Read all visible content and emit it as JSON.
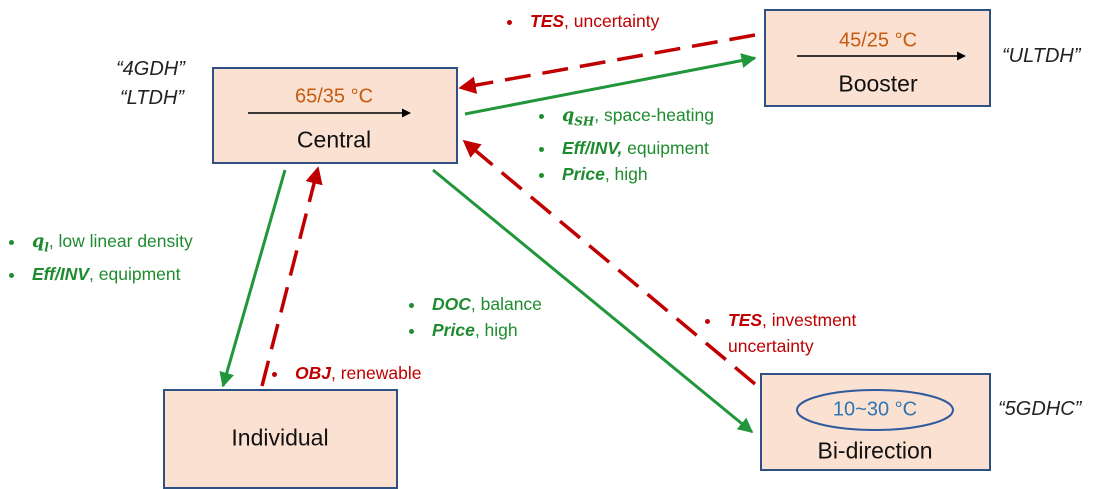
{
  "nodes": {
    "central": {
      "label": "Central",
      "temp": "65/35 °C",
      "tags": [
        "“4GDH”",
        "“LTDH”"
      ]
    },
    "booster": {
      "label": "Booster",
      "temp": "45/25 °C",
      "tag": "“ULTDH”"
    },
    "individual": {
      "label": "Individual"
    },
    "bidirection": {
      "label": "Bi-direction",
      "temp": "10~30 °C",
      "tag": "“5GDHC”"
    }
  },
  "annotations": {
    "booster_to_central": [
      {
        "key": "TES",
        "text": ", uncertainty"
      }
    ],
    "central_to_booster": [
      {
        "key": "q",
        "sub": "SH",
        "text": ", space-heating"
      },
      {
        "key": "Eff/INV,",
        "text": " equipment"
      },
      {
        "key": "Price",
        "text": ", high"
      }
    ],
    "central_to_individual": [
      {
        "key": "q",
        "sub": "l",
        "text": ", low linear density"
      },
      {
        "key": "Eff/INV",
        "text": ", equipment"
      }
    ],
    "individual_to_central": [
      {
        "key": "OBJ",
        "text": ", renewable"
      }
    ],
    "central_to_bidirection": [
      {
        "key": "DOC",
        "text": ", balance"
      },
      {
        "key": "Price",
        "text": ", high"
      }
    ],
    "bidirection_to_central": [
      {
        "key": "TES",
        "text": ", investment uncertainty"
      }
    ]
  }
}
